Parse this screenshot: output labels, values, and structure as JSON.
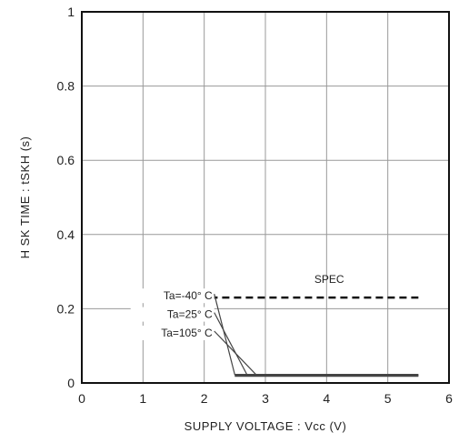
{
  "chart_data": {
    "type": "line",
    "xlabel": "SUPPLY  VOLTAGE : Vcc (V)",
    "ylabel": "H  SK  TIME : tSKH (s)",
    "xlim": [
      0,
      6
    ],
    "ylim": [
      0,
      1
    ],
    "x_ticks": [
      "0",
      "1",
      "2",
      "3",
      "4",
      "5",
      "6"
    ],
    "y_ticks": [
      "0",
      "0.2",
      "0.4",
      "0.6",
      "0.8",
      "1"
    ],
    "x_tick_values": [
      0,
      1,
      2,
      3,
      4,
      5,
      6
    ],
    "y_tick_values": [
      0,
      0.2,
      0.4,
      0.6,
      0.8,
      1
    ],
    "grid": true,
    "colors": {
      "axes": "#111111",
      "grid": "#999999",
      "series": "#444444",
      "spec": "#111111"
    },
    "series": [
      {
        "name": "Ta=-40° C",
        "x": [
          2.5,
          2.85,
          5.5
        ],
        "y": [
          0.022,
          0.022,
          0.022
        ]
      },
      {
        "name": "Ta=25° C",
        "x": [
          2.5,
          2.85,
          5.5
        ],
        "y": [
          0.022,
          0.022,
          0.022
        ]
      },
      {
        "name": "Ta=105° C",
        "x": [
          2.5,
          2.85,
          5.5
        ],
        "y": [
          0.022,
          0.022,
          0.022
        ]
      }
    ],
    "spec": {
      "name": "SPEC",
      "x": [
        2.1,
        5.5
      ],
      "y": 0.23,
      "style": "dashed"
    },
    "annotations": [
      {
        "text": "Ta=-40°  C",
        "x_text": 1.6,
        "y_text": 0.225,
        "x_point": 2.5,
        "y_point": 0.022
      },
      {
        "text": "Ta=25°  C",
        "x_text": 1.6,
        "y_text": 0.175,
        "x_point": 2.7,
        "y_point": 0.022
      },
      {
        "text": "Ta=105°  C",
        "x_text": 1.6,
        "y_text": 0.125,
        "x_point": 2.85,
        "y_point": 0.022
      }
    ],
    "spec_label": {
      "text": "SPEC",
      "x": 3.8,
      "y": 0.27
    }
  }
}
